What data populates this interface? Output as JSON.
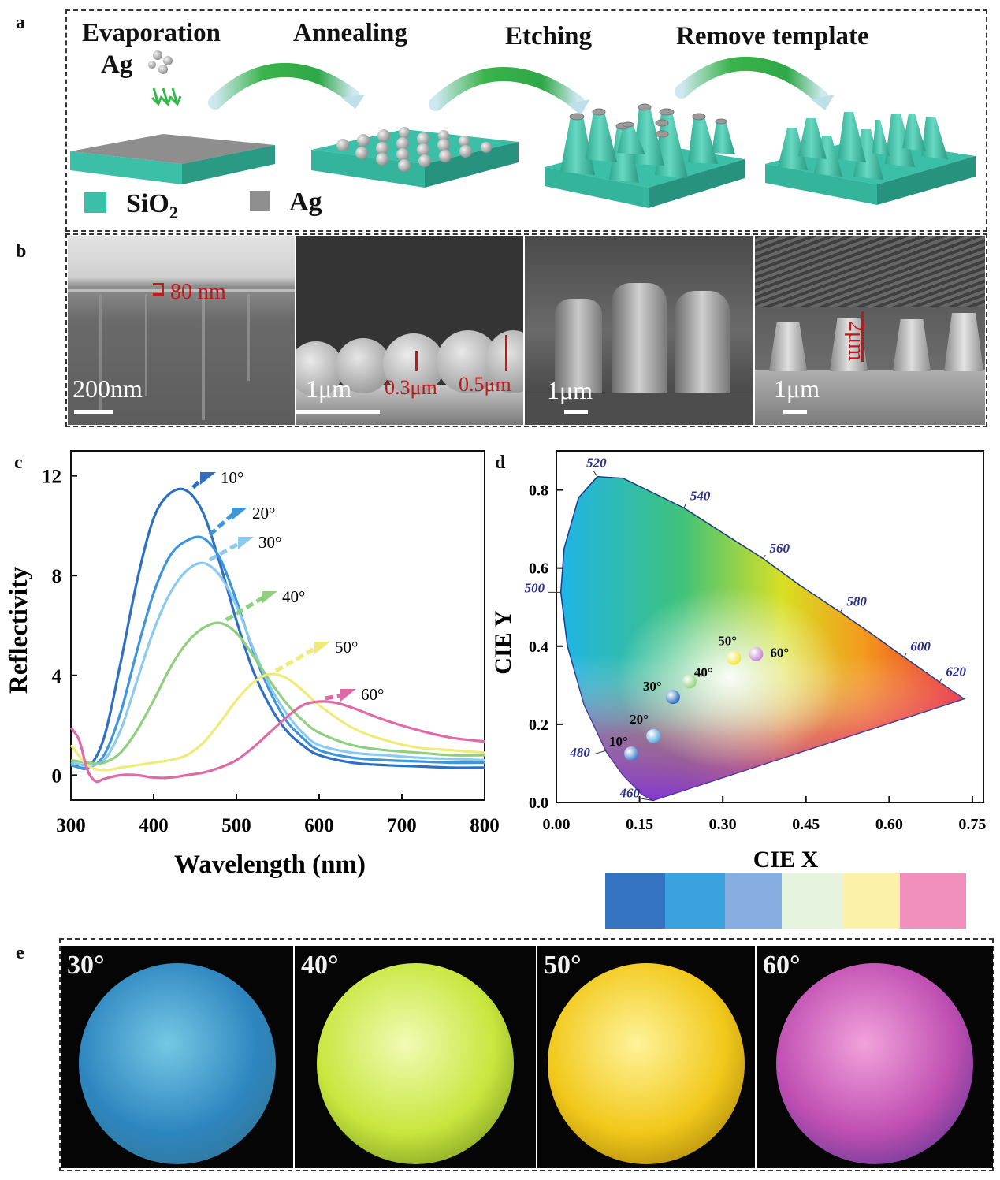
{
  "panels": {
    "a": "a",
    "b": "b",
    "c": "c",
    "d": "d",
    "e": "e"
  },
  "panel_a": {
    "steps": [
      "Evaporation",
      "Annealing",
      "Etching",
      "Remove template"
    ],
    "ag_label": "Ag",
    "legend": [
      {
        "text": "SiO",
        "sub": "2",
        "color": "#3bbfa6"
      },
      {
        "text": "Ag",
        "sub": "",
        "color": "#8f8f8f"
      }
    ],
    "colors": {
      "sio2": "#3bbfa6",
      "ag": "#9a9a9a",
      "arrow": "#35b84a"
    }
  },
  "panel_b": {
    "images": [
      {
        "scale": "200nm",
        "annotation": "80 nm"
      },
      {
        "scale": "1μm",
        "annotations": [
          "0.3μm",
          "0.5μm"
        ]
      },
      {
        "scale": "1μm"
      },
      {
        "scale": "1μm",
        "annotation": "2μm"
      }
    ]
  },
  "chart_data": [
    {
      "type": "line",
      "panel": "c",
      "xlabel": "Wavelength (nm)",
      "ylabel": "Reflectivity",
      "xlim": [
        300,
        800
      ],
      "ylim": [
        -1,
        13
      ],
      "xticks": [
        300,
        400,
        500,
        600,
        700,
        800
      ],
      "yticks": [
        0,
        4,
        8,
        12
      ],
      "series": [
        {
          "name": "10°",
          "color": "#2e6fc2",
          "x": [
            300,
            320,
            340,
            360,
            380,
            400,
            420,
            440,
            460,
            480,
            500,
            520,
            540,
            560,
            580,
            600,
            640,
            680,
            720,
            760,
            800
          ],
          "y": [
            0.5,
            0.3,
            1.5,
            4.5,
            7.8,
            10.3,
            11.3,
            11.4,
            10.5,
            8.5,
            6.2,
            4.2,
            2.8,
            1.8,
            1.2,
            0.8,
            0.5,
            0.4,
            0.35,
            0.3,
            0.3
          ]
        },
        {
          "name": "20°",
          "color": "#3e95d8",
          "x": [
            300,
            320,
            340,
            360,
            380,
            400,
            420,
            440,
            460,
            480,
            500,
            520,
            540,
            560,
            580,
            600,
            640,
            680,
            720,
            760,
            800
          ],
          "y": [
            0.4,
            0.3,
            0.8,
            2.5,
            5,
            7.3,
            8.8,
            9.4,
            9.5,
            8.7,
            7,
            5,
            3.4,
            2.2,
            1.5,
            1,
            0.7,
            0.6,
            0.55,
            0.5,
            0.5
          ]
        },
        {
          "name": "30°",
          "color": "#8ccbef",
          "x": [
            300,
            320,
            340,
            360,
            380,
            400,
            420,
            440,
            460,
            480,
            500,
            520,
            540,
            560,
            580,
            600,
            640,
            680,
            720,
            760,
            800
          ],
          "y": [
            0.5,
            0.4,
            0.6,
            1.8,
            3.8,
            5.8,
            7.3,
            8.2,
            8.5,
            8,
            6.8,
            5.1,
            3.6,
            2.5,
            1.7,
            1.2,
            0.9,
            0.8,
            0.7,
            0.65,
            0.6
          ]
        },
        {
          "name": "40°",
          "color": "#8fcf7f",
          "x": [
            300,
            320,
            340,
            360,
            380,
            400,
            420,
            440,
            460,
            480,
            500,
            520,
            540,
            560,
            580,
            600,
            640,
            680,
            720,
            760,
            800
          ],
          "y": [
            0.6,
            0.5,
            0.5,
            0.9,
            1.8,
            3,
            4.3,
            5.3,
            5.9,
            6.1,
            5.7,
            4.8,
            3.8,
            2.9,
            2.2,
            1.7,
            1.2,
            1,
            0.9,
            0.8,
            0.8
          ]
        },
        {
          "name": "50°",
          "color": "#f0ea78",
          "x": [
            300,
            320,
            340,
            360,
            380,
            400,
            420,
            440,
            460,
            480,
            500,
            520,
            540,
            560,
            580,
            600,
            640,
            680,
            720,
            760,
            800
          ],
          "y": [
            1.2,
            0.4,
            0.2,
            0.3,
            0.4,
            0.5,
            0.6,
            0.8,
            1.3,
            2.1,
            3,
            3.7,
            4.05,
            3.9,
            3.4,
            2.8,
            1.9,
            1.4,
            1.1,
            1,
            0.9
          ]
        },
        {
          "name": "60°",
          "color": "#df6aa6",
          "x": [
            300,
            310,
            320,
            330,
            340,
            360,
            380,
            400,
            420,
            440,
            460,
            480,
            500,
            520,
            540,
            560,
            580,
            600,
            620,
            640,
            680,
            720,
            760,
            800
          ],
          "y": [
            1.9,
            1.4,
            0.2,
            -0.25,
            -0.15,
            0,
            0,
            -0.1,
            -0.1,
            0,
            0.1,
            0.3,
            0.6,
            1.1,
            1.7,
            2.3,
            2.8,
            2.95,
            2.9,
            2.7,
            2.2,
            1.8,
            1.5,
            1.35
          ]
        }
      ]
    },
    {
      "type": "scatter",
      "panel": "d",
      "xlabel": "CIE X",
      "ylabel": "CIE Y",
      "xlim": [
        0,
        0.77
      ],
      "ylim": [
        0,
        0.9
      ],
      "xticks": [
        "0.00",
        "0.15",
        "0.30",
        "0.45",
        "0.60",
        "0.75"
      ],
      "yticks": [
        "0.0",
        "0.2",
        "0.4",
        "0.6",
        "0.8"
      ],
      "wavelength_labels": [
        {
          "label": "460",
          "x": 0.174,
          "y": 0.005
        },
        {
          "label": "480",
          "x": 0.09,
          "y": 0.133
        },
        {
          "label": "500",
          "x": 0.008,
          "y": 0.538
        },
        {
          "label": "520",
          "x": 0.074,
          "y": 0.834
        },
        {
          "label": "540",
          "x": 0.23,
          "y": 0.754
        },
        {
          "label": "560",
          "x": 0.373,
          "y": 0.624
        },
        {
          "label": "580",
          "x": 0.512,
          "y": 0.487
        },
        {
          "label": "600",
          "x": 0.627,
          "y": 0.372
        },
        {
          "label": "620",
          "x": 0.691,
          "y": 0.308
        }
      ],
      "points": [
        {
          "label": "10°",
          "x": 0.135,
          "y": 0.125,
          "color": "#3c77c9"
        },
        {
          "label": "20°",
          "x": 0.175,
          "y": 0.17,
          "color": "#52a6e0"
        },
        {
          "label": "30°",
          "x": 0.21,
          "y": 0.27,
          "color": "#1b63b8"
        },
        {
          "label": "40°",
          "x": 0.24,
          "y": 0.31,
          "color": "#8ed27a"
        },
        {
          "label": "50°",
          "x": 0.32,
          "y": 0.37,
          "color": "#f2e42c"
        },
        {
          "label": "60°",
          "x": 0.36,
          "y": 0.38,
          "color": "#c67fd8"
        }
      ],
      "swatches": [
        "#3473bf",
        "#3aa2de",
        "#86aee0",
        "#e6f3df",
        "#fbf1a8",
        "#f290bd"
      ]
    }
  ],
  "panel_e": {
    "photos": [
      {
        "angle": "30°",
        "c1": "#74c9e4",
        "c2": "#2e86c0",
        "c3": "#356e84"
      },
      {
        "angle": "40°",
        "c1": "#f1fbb4",
        "c2": "#c8e63e",
        "c3": "#5f7a16"
      },
      {
        "angle": "50°",
        "c1": "#fff39a",
        "c2": "#f1c81a",
        "c3": "#8f6a08"
      },
      {
        "angle": "60°",
        "c1": "#f2a2dc",
        "c2": "#c04fb2",
        "c3": "#3d2f8a"
      }
    ]
  }
}
